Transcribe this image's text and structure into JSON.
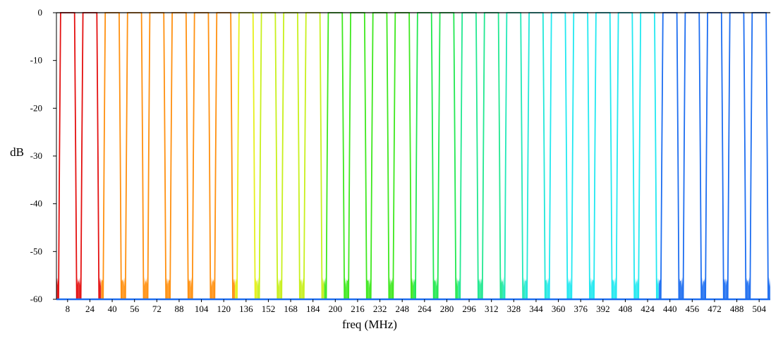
{
  "chart_data": {
    "type": "line",
    "title": "",
    "xlabel": "freq (MHz)",
    "ylabel": "dB",
    "xlim": [
      0,
      512
    ],
    "ylim": [
      -60,
      0
    ],
    "grid": false,
    "legend": "none",
    "y_ticks": [
      0,
      -10,
      -20,
      -30,
      -40,
      -50,
      -60
    ],
    "y_tick_labels": [
      "0",
      "-10",
      "-20",
      "-30",
      "-40",
      "-50",
      "-60"
    ],
    "x_ticks": [
      8,
      24,
      40,
      56,
      72,
      88,
      104,
      120,
      136,
      152,
      168,
      184,
      200,
      216,
      232,
      248,
      264,
      280,
      296,
      312,
      328,
      344,
      360,
      376,
      392,
      408,
      424,
      440,
      456,
      472,
      488,
      504
    ],
    "x_tick_labels": [
      "8",
      "24",
      "40",
      "56",
      "72",
      "88",
      "104",
      "120",
      "136",
      "152",
      "168",
      "184",
      "200",
      "216",
      "232",
      "248",
      "264",
      "280",
      "296",
      "312",
      "328",
      "344",
      "360",
      "376",
      "392",
      "408",
      "424",
      "440",
      "456",
      "472",
      "488",
      "504"
    ],
    "filter_bank": {
      "passband_db": 0,
      "stopband_db": -57,
      "passband_width_mhz": 10,
      "transition_width_mhz": 1.5,
      "bands": [
        {
          "center_mhz": 8,
          "color": "#e41010"
        },
        {
          "center_mhz": 24,
          "color": "#e41010"
        },
        {
          "center_mhz": 40,
          "color": "#ff9010"
        },
        {
          "center_mhz": 56,
          "color": "#ff9010"
        },
        {
          "center_mhz": 72,
          "color": "#ff9010"
        },
        {
          "center_mhz": 88,
          "color": "#ff9010"
        },
        {
          "center_mhz": 104,
          "color": "#ff9010"
        },
        {
          "center_mhz": 120,
          "color": "#ff9010"
        },
        {
          "center_mhz": 136,
          "color": "#e6f01c"
        },
        {
          "center_mhz": 152,
          "color": "#c8f01c"
        },
        {
          "center_mhz": 168,
          "color": "#c8f01c"
        },
        {
          "center_mhz": 184,
          "color": "#c8f01c"
        },
        {
          "center_mhz": 200,
          "color": "#3ee81e"
        },
        {
          "center_mhz": 216,
          "color": "#3ee81e"
        },
        {
          "center_mhz": 232,
          "color": "#3ee81e"
        },
        {
          "center_mhz": 248,
          "color": "#3ee81e"
        },
        {
          "center_mhz": 264,
          "color": "#22e850"
        },
        {
          "center_mhz": 280,
          "color": "#22e850"
        },
        {
          "center_mhz": 296,
          "color": "#22e890"
        },
        {
          "center_mhz": 312,
          "color": "#22e890"
        },
        {
          "center_mhz": 328,
          "color": "#22e8b8"
        },
        {
          "center_mhz": 344,
          "color": "#22e8d8"
        },
        {
          "center_mhz": 360,
          "color": "#22e8f0"
        },
        {
          "center_mhz": 376,
          "color": "#22e8f0"
        },
        {
          "center_mhz": 392,
          "color": "#22e8f0"
        },
        {
          "center_mhz": 408,
          "color": "#22e8f0"
        },
        {
          "center_mhz": 424,
          "color": "#22e8f0"
        },
        {
          "center_mhz": 440,
          "color": "#1e6ef0"
        },
        {
          "center_mhz": 456,
          "color": "#1e6ef0"
        },
        {
          "center_mhz": 472,
          "color": "#1e6ef0"
        },
        {
          "center_mhz": 488,
          "color": "#1e6ef0"
        },
        {
          "center_mhz": 504,
          "color": "#1e6ef0"
        }
      ]
    }
  }
}
